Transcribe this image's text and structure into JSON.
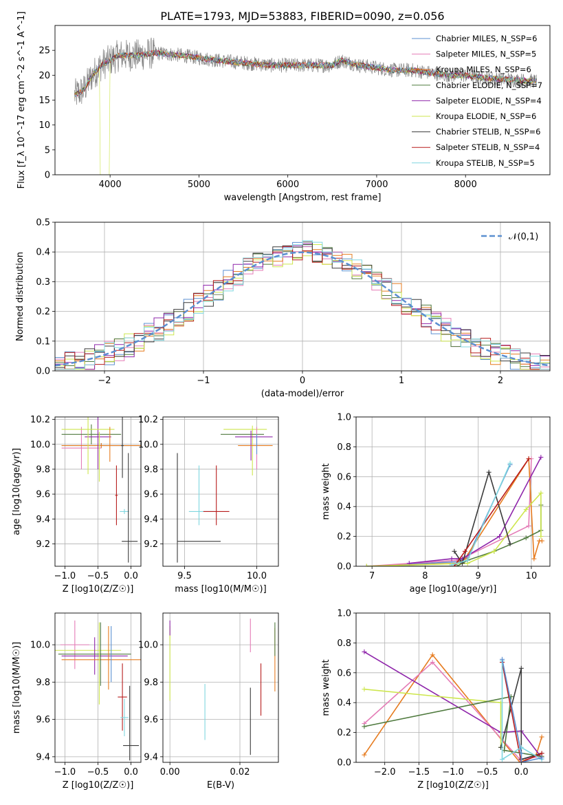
{
  "chart_data": [
    {
      "type": "line",
      "title": "PLATE=1793, MJD=53883, FIBERID=0090, z=0.056",
      "xlabel": "wavelength [Angstrom, rest frame]",
      "ylabel": "Flux [f_λ 10^-17 erg cm^-2 s^-1 A^-1]",
      "xlim": [
        3380,
        8950
      ],
      "ylim": [
        0,
        30
      ],
      "xticks": [
        "4000",
        "5000",
        "6000",
        "7000",
        "8000"
      ],
      "yticks": [
        "0",
        "5",
        "10",
        "15",
        "20",
        "25"
      ],
      "legend_position": "top-right",
      "series": [
        {
          "name": "Chabrier MILES, N_SSP=6",
          "color": "#5b8fd0"
        },
        {
          "name": "Salpeter MILES, N_SSP=5",
          "color": "#e47bb6"
        },
        {
          "name": "Kroupa MILES, N_SSP=6",
          "color": "#e67b1f"
        },
        {
          "name": "Chabrier ELODIE, N_SSP=7",
          "color": "#4f7a3e"
        },
        {
          "name": "Salpeter ELODIE, N_SSP=4",
          "color": "#8e24aa"
        },
        {
          "name": "Kroupa ELODIE, N_SSP=6",
          "color": "#cde64d"
        },
        {
          "name": "Chabrier STELIB, N_SSP=6",
          "color": "#3a3a3a"
        },
        {
          "name": "Salpeter STELIB, N_SSP=4",
          "color": "#b71c1c"
        },
        {
          "name": "Kroupa STELIB, N_SSP=5",
          "color": "#7fd6df"
        }
      ],
      "continuum": {
        "x": [
          3600,
          3700,
          3800,
          3900,
          4000,
          4100,
          4300,
          4500,
          4800,
          5000,
          5200,
          5500,
          5800,
          6000,
          6300,
          6500,
          6600,
          6800,
          7000,
          7200,
          7400,
          7600,
          7800,
          8000,
          8200,
          8400,
          8600,
          8800
        ],
        "y": [
          16,
          17,
          20,
          22,
          23,
          24,
          24,
          24.5,
          24,
          23.5,
          23,
          22.5,
          22,
          22,
          22,
          22,
          23,
          22,
          21.5,
          21,
          21,
          20.5,
          20,
          20,
          19.5,
          19.2,
          19,
          18.8
        ]
      },
      "observed_noise_amplitude": 3
    },
    {
      "type": "histogram",
      "xlabel": "(data-model)/error",
      "ylabel": "Normed distribution",
      "xlim": [
        -2.5,
        2.5
      ],
      "ylim": [
        0,
        0.5
      ],
      "xticks": [
        "−2",
        "−1",
        "0",
        "1",
        "2"
      ],
      "yticks": [
        "0.0",
        "0.1",
        "0.2",
        "0.3",
        "0.4",
        "0.5"
      ],
      "bin_width": 0.1,
      "reference_curve": {
        "name": "𝒩(0,1)",
        "mean": 0,
        "sigma": 1,
        "color": "#5b8fd0",
        "style": "dashed"
      },
      "legend_position": "top-right"
    },
    {
      "type": "scatter",
      "xlabel": "Z [log10(Z/Z☉)]",
      "ylabel": "age  [log10(age/yr)]",
      "xlim": [
        -1.15,
        0.15
      ],
      "ylim": [
        9.02,
        10.22
      ],
      "xticks": [
        "−1.0",
        "−0.5",
        "0.0"
      ],
      "yticks": [
        "9.2",
        "9.4",
        "9.6",
        "9.8",
        "10.0",
        "10.2"
      ],
      "points": [
        {
          "series": "Chabrier MILES",
          "x": -0.45,
          "xerr": 0.6,
          "y": 9.99,
          "yerr": 0.02
        },
        {
          "series": "Salpeter MILES",
          "x": -0.75,
          "xerr": 0.3,
          "y": 9.97,
          "yerr": 0.17
        },
        {
          "series": "Kroupa MILES",
          "x": -0.45,
          "xerr": 0.6,
          "y": 9.99,
          "yerr": 0.02
        },
        {
          "series": "Chabrier ELODIE",
          "x": -0.6,
          "xerr": 0.45,
          "y": 10.08,
          "yerr": 0.08
        },
        {
          "series": "Salpeter ELODIE",
          "x": -0.5,
          "xerr": 0.2,
          "y": 10.06,
          "yerr": 0.26
        },
        {
          "series": "Kroupa ELODIE",
          "x": -0.65,
          "xerr": 0.4,
          "y": 10.12,
          "yerr": 0.36
        },
        {
          "series": "Chabrier STELIB",
          "x": -0.13,
          "xerr": 0.02,
          "y": 9.99,
          "yerr": 0.26
        },
        {
          "series": "Salpeter STELIB",
          "x": -0.22,
          "xerr": 0.02,
          "y": 9.59,
          "yerr": 0.24
        },
        {
          "series": "Kroupa STELIB",
          "x": -0.1,
          "xerr": 0.07,
          "y": 9.46,
          "yerr": 0.02
        },
        {
          "series": "Chabrier STELIB",
          "x": -0.02,
          "xerr": 0.12,
          "y": 9.22,
          "yerr": 0.0
        },
        {
          "series": "Chabrier STELIB",
          "x": -0.04,
          "xerr": 0.0,
          "y": 9.49,
          "yerr": 0.44
        },
        {
          "series": "Kroupa ELODIE",
          "x": -0.48,
          "xerr": 0.0,
          "y": 9.9,
          "yerr": 0.2
        },
        {
          "series": "Kroupa MILES",
          "x": -0.32,
          "xerr": 0.0,
          "y": 10.0,
          "yerr": 0.14
        }
      ]
    },
    {
      "type": "scatter",
      "xlabel": "mass [log10(M/M☉)]",
      "xlim": [
        9.35,
        10.15
      ],
      "ylim": [
        9.02,
        10.22
      ],
      "xticks": [
        "9.5",
        "10.0"
      ],
      "yticks": [
        "9.2",
        "9.4",
        "9.6",
        "9.8",
        "10.0",
        "10.2"
      ],
      "points": [
        {
          "series": "Chabrier STELIB",
          "x": 9.6,
          "xerr": 0.15,
          "y": 9.22,
          "yerr": 0.0
        },
        {
          "series": "Chabrier STELIB",
          "x": 9.45,
          "xerr": 0.0,
          "y": 9.49,
          "yerr": 0.44
        },
        {
          "series": "Kroupa STELIB",
          "x": 9.62,
          "xerr": 0.09,
          "y": 9.46,
          "yerr": 0.0
        },
        {
          "series": "Kroupa STELIB",
          "x": 9.6,
          "xerr": 0.0,
          "y": 9.59,
          "yerr": 0.24
        },
        {
          "series": "Salpeter STELIB",
          "x": 9.72,
          "xerr": 0.09,
          "y": 9.46,
          "yerr": 0.0
        },
        {
          "series": "Salpeter STELIB",
          "x": 9.72,
          "xerr": 0.0,
          "y": 9.59,
          "yerr": 0.24
        },
        {
          "series": "Kroupa ELODIE",
          "x": 9.92,
          "xerr": 0.15,
          "y": 10.12,
          "yerr": 0.0
        },
        {
          "series": "Kroupa ELODIE",
          "x": 9.97,
          "xerr": 0.0,
          "y": 9.95,
          "yerr": 0.2
        },
        {
          "series": "Chabrier ELODIE",
          "x": 9.9,
          "xerr": 0.15,
          "y": 10.08,
          "yerr": 0.0
        },
        {
          "series": "Salpeter ELODIE",
          "x": 9.98,
          "xerr": 0.13,
          "y": 10.06,
          "yerr": 0.0
        },
        {
          "series": "Salpeter ELODIE",
          "x": 9.96,
          "xerr": 0.0,
          "y": 9.99,
          "yerr": 0.12
        },
        {
          "series": "Salpeter MILES",
          "x": 10.0,
          "xerr": 0.0,
          "y": 9.97,
          "yerr": 0.17
        },
        {
          "series": "Kroupa MILES",
          "x": 9.99,
          "xerr": 0.12,
          "y": 9.99,
          "yerr": 0.0
        },
        {
          "series": "Chabrier MILES",
          "x": 10.0,
          "xerr": 0.0,
          "y": 10.0,
          "yerr": 0.08
        }
      ]
    },
    {
      "type": "line",
      "xlabel": "age  [log10(age/yr)]",
      "ylabel": "mass weight",
      "xlim": [
        6.7,
        10.35
      ],
      "ylim": [
        0,
        1.0
      ],
      "xticks": [
        "7",
        "8",
        "9",
        "10"
      ],
      "yticks": [
        "0.0",
        "0.2",
        "0.4",
        "0.6",
        "0.8",
        "1.0"
      ],
      "series": [
        {
          "name": "Chabrier MILES",
          "x": [
            6.9,
            8.6,
            8.8,
            9.6
          ],
          "y": [
            0.0,
            0.03,
            0.06,
            0.68
          ]
        },
        {
          "name": "Salpeter MILES",
          "x": [
            6.9,
            8.6,
            8.8,
            9.95,
            10.0
          ],
          "y": [
            0.0,
            0.04,
            0.07,
            0.27,
            0.72
          ]
        },
        {
          "name": "Kroupa MILES",
          "x": [
            6.9,
            8.6,
            8.75,
            9.95,
            10.05,
            10.15,
            10.2
          ],
          "y": [
            0.0,
            0.02,
            0.05,
            0.72,
            0.05,
            0.17,
            0.17
          ]
        },
        {
          "name": "Chabrier ELODIE",
          "x": [
            6.9,
            8.6,
            8.8,
            9.3,
            9.9,
            10.18,
            10.18
          ],
          "y": [
            0.0,
            0.0,
            0.04,
            0.1,
            0.19,
            0.24,
            0.41
          ]
        },
        {
          "name": "Salpeter ELODIE",
          "x": [
            7.7,
            8.5,
            8.7,
            9.4,
            10.18
          ],
          "y": [
            0.02,
            0.05,
            0.05,
            0.2,
            0.73
          ]
        },
        {
          "name": "Kroupa ELODIE",
          "x": [
            6.9,
            8.8,
            9.3,
            9.9,
            10.18,
            10.18
          ],
          "y": [
            0.0,
            0.02,
            0.1,
            0.38,
            0.49,
            0.2
          ]
        },
        {
          "name": "Chabrier STELIB",
          "x": [
            8.55,
            8.7,
            9.2,
            9.6
          ],
          "y": [
            0.1,
            0.02,
            0.63,
            0.15
          ]
        },
        {
          "name": "Salpeter STELIB",
          "x": [
            8.55,
            8.75,
            9.95
          ],
          "y": [
            0.0,
            0.1,
            0.72
          ]
        },
        {
          "name": "Kroupa STELIB",
          "x": [
            8.5,
            8.8,
            9.6
          ],
          "y": [
            0.01,
            0.04,
            0.69
          ]
        }
      ]
    },
    {
      "type": "scatter",
      "xlabel": "Z [log10(Z/Z☉)]",
      "ylabel": "mass [log10(M/M☉)]",
      "xlim": [
        -1.15,
        0.15
      ],
      "ylim": [
        9.37,
        10.17
      ],
      "xticks": [
        "−1.0",
        "−0.5",
        "0.0"
      ],
      "yticks": [
        "9.4",
        "9.6",
        "9.8",
        "10.0"
      ],
      "points": [
        {
          "series": "Salpeter MILES",
          "x": -0.85,
          "xerr": 0.22,
          "y": 10.0,
          "yerr": 0.13
        },
        {
          "series": "Kroupa ELODIE",
          "x": -0.65,
          "xerr": 0.5,
          "y": 9.97,
          "yerr": 0.0
        },
        {
          "series": "Chabrier ELODIE",
          "x": -0.55,
          "xerr": 0.55,
          "y": 9.95,
          "yerr": 0.0
        },
        {
          "series": "Salpeter ELODIE",
          "x": -0.55,
          "xerr": 0.5,
          "y": 9.94,
          "yerr": 0.1
        },
        {
          "series": "Kroupa MILES",
          "x": -0.45,
          "xerr": 0.6,
          "y": 9.92,
          "yerr": 0.0
        },
        {
          "series": "Kroupa ELODIE",
          "x": -0.48,
          "xerr": 0.0,
          "y": 9.9,
          "yerr": 0.22
        },
        {
          "series": "Chabrier ELODIE",
          "x": -0.46,
          "xerr": 0.0,
          "y": 9.95,
          "yerr": 0.17
        },
        {
          "series": "Kroupa MILES",
          "x": -0.34,
          "xerr": 0.0,
          "y": 9.93,
          "yerr": 0.17
        },
        {
          "series": "Chabrier MILES",
          "x": -0.3,
          "xerr": 0.0,
          "y": 9.95,
          "yerr": 0.15
        },
        {
          "series": "Salpeter STELIB",
          "x": -0.13,
          "xerr": 0.07,
          "y": 9.72,
          "yerr": 0.18
        },
        {
          "series": "Kroupa STELIB",
          "x": -0.1,
          "xerr": 0.06,
          "y": 9.61,
          "yerr": 0.1
        },
        {
          "series": "Chabrier STELIB",
          "x": 0.0,
          "xerr": 0.12,
          "y": 9.46,
          "yerr": 0.0
        },
        {
          "series": "Chabrier STELIB",
          "x": -0.02,
          "xerr": 0.0,
          "y": 9.58,
          "yerr": 0.2
        }
      ]
    },
    {
      "type": "scatter",
      "xlabel": "E(B-V)",
      "xlim": [
        -0.002,
        0.031
      ],
      "ylim": [
        9.37,
        10.17
      ],
      "xticks": [
        "0.00",
        "0.02"
      ],
      "yticks": [
        "9.4",
        "9.6",
        "9.8",
        "10.0"
      ],
      "points": [
        {
          "series": "Kroupa ELODIE",
          "x": 0.0,
          "yerr": 0.2,
          "y": 9.9
        },
        {
          "series": "Salpeter ELODIE",
          "x": 0.0,
          "yerr": 0.04,
          "y": 10.09
        },
        {
          "series": "Kroupa STELIB",
          "x": 0.01,
          "yerr": 0.15,
          "y": 9.64
        },
        {
          "series": "Salpeter MILES",
          "x": 0.023,
          "yerr": 0.09,
          "y": 10.05
        },
        {
          "series": "Chabrier STELIB",
          "x": 0.023,
          "yerr": 0.18,
          "y": 9.59
        },
        {
          "series": "Salpeter STELIB",
          "x": 0.026,
          "yerr": 0.14,
          "y": 9.76
        },
        {
          "series": "Kroupa MILES",
          "x": 0.03,
          "yerr": 0.17,
          "y": 9.92
        },
        {
          "series": "Chabrier ELODIE",
          "x": 0.03,
          "yerr": 0.09,
          "y": 10.03
        }
      ]
    },
    {
      "type": "line",
      "xlabel": "Z [log10(Z/Z☉)]",
      "ylabel": "mass weight",
      "xlim": [
        -2.42,
        0.42
      ],
      "ylim": [
        0,
        1.0
      ],
      "xticks": [
        "−2.0",
        "−1.5",
        "−1.0",
        "−0.5",
        "0.0"
      ],
      "yticks": [
        "0.0",
        "0.2",
        "0.4",
        "0.6",
        "0.8",
        "1.0"
      ],
      "series": [
        {
          "name": "Kroupa MILES",
          "x": [
            -2.3,
            -1.3,
            -0.02,
            0.22,
            0.3
          ],
          "y": [
            0.05,
            0.72,
            0.0,
            0.05,
            0.17
          ]
        },
        {
          "name": "Salpeter MILES",
          "x": [
            -2.3,
            -1.3,
            -0.02,
            0.3
          ],
          "y": [
            0.26,
            0.67,
            0.02,
            0.04
          ]
        },
        {
          "name": "Salpeter ELODIE",
          "x": [
            -2.3,
            -0.3,
            0.0,
            0.3
          ],
          "y": [
            0.74,
            0.2,
            0.21,
            0.03
          ]
        },
        {
          "name": "Kroupa ELODIE",
          "x": [
            -2.3,
            -0.3,
            -0.3
          ],
          "y": [
            0.49,
            0.4,
            0.1
          ]
        },
        {
          "name": "Chabrier ELODIE",
          "x": [
            -2.3,
            -0.15,
            -0.25,
            0.3
          ],
          "y": [
            0.24,
            0.44,
            0.08,
            0.04
          ]
        },
        {
          "name": "Chabrier STELIB",
          "x": [
            -0.3,
            0.0,
            0.0,
            0.3
          ],
          "y": [
            0.1,
            0.63,
            0.02,
            0.06
          ]
        },
        {
          "name": "Salpeter STELIB",
          "x": [
            -0.28,
            0.0,
            0.3
          ],
          "y": [
            0.67,
            0.0,
            0.06
          ]
        },
        {
          "name": "Kroupa STELIB",
          "x": [
            -0.28,
            -0.28,
            0.0,
            0.3
          ],
          "y": [
            0.68,
            0.02,
            0.1,
            0.02
          ]
        },
        {
          "name": "Chabrier MILES",
          "x": [
            -0.28,
            0.0,
            0.0,
            0.3
          ],
          "y": [
            0.69,
            0.06,
            0.0,
            0.03
          ]
        }
      ]
    }
  ]
}
